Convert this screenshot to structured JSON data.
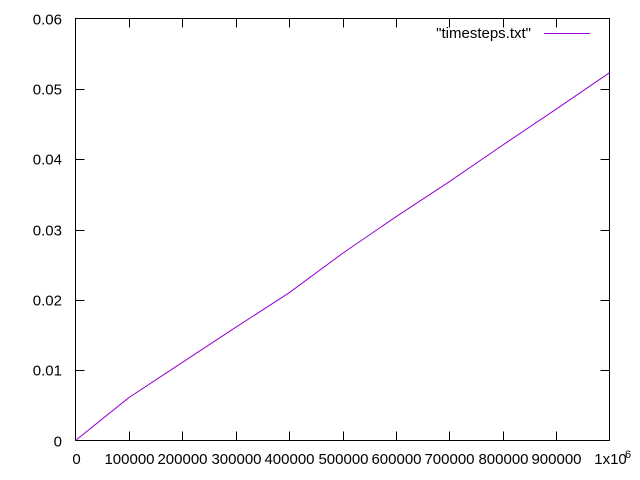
{
  "chart_data": {
    "type": "line",
    "title": "",
    "xlabel": "",
    "ylabel": "",
    "xlim": [
      0,
      1000000
    ],
    "ylim": [
      0,
      0.06
    ],
    "x_ticks": [
      0,
      100000,
      200000,
      300000,
      400000,
      500000,
      600000,
      700000,
      800000,
      900000,
      1000000
    ],
    "x_tick_labels": [
      "0",
      "100000",
      "200000",
      "300000",
      "400000",
      "500000",
      "600000",
      "700000",
      "800000",
      "900000",
      "1x10"
    ],
    "x_tick_exponent": "6",
    "y_ticks": [
      0,
      0.01,
      0.02,
      0.03,
      0.04,
      0.05,
      0.06
    ],
    "y_tick_labels": [
      "0",
      "0.01",
      "0.02",
      "0.03",
      "0.04",
      "0.05",
      "0.06"
    ],
    "grid": false,
    "legend_position": "top-right",
    "series": [
      {
        "name": "\"timesteps.txt\"",
        "color": "#9400d3",
        "x": [
          0,
          100000,
          200000,
          300000,
          400000,
          500000,
          600000,
          700000,
          800000,
          900000,
          1000000
        ],
        "y": [
          0,
          0.0061,
          0.0111,
          0.0161,
          0.021,
          0.0266,
          0.0318,
          0.0368,
          0.042,
          0.0471,
          0.0523
        ]
      }
    ]
  }
}
